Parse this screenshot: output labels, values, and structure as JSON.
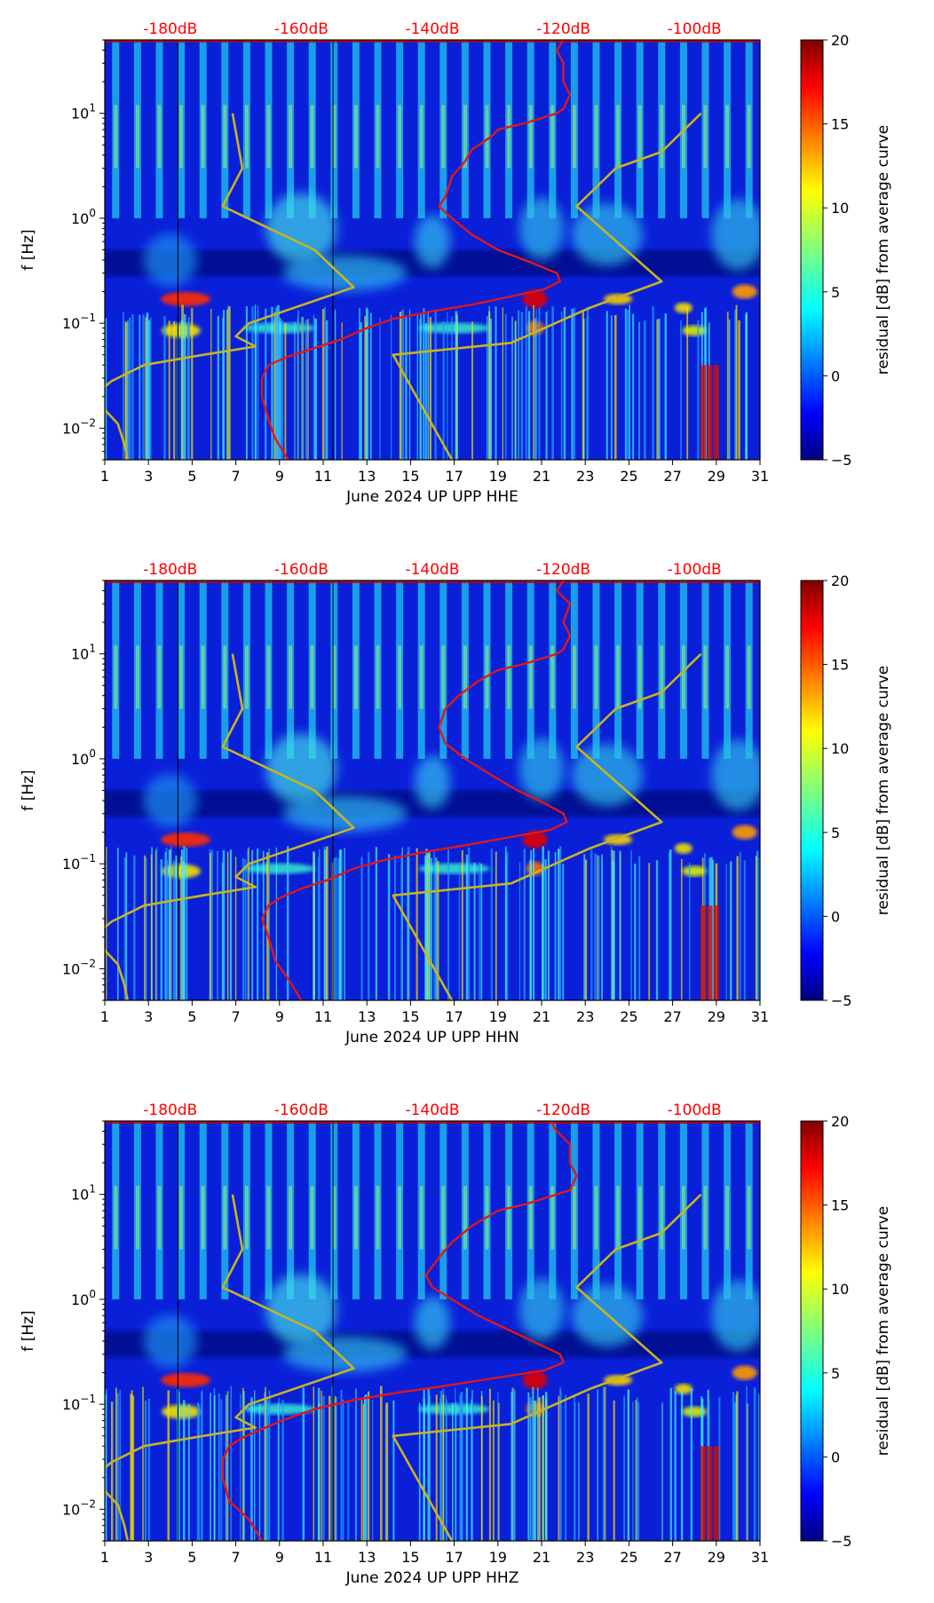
{
  "colors": {
    "psd_curve": "#e0161a",
    "model_curve": "#c8b420",
    "top_db_labels": "#ff0000",
    "background": "#ffffff"
  },
  "chart_data": [
    {
      "type": "heatmap",
      "xlabel": "June 2024 UP UPP  HHE",
      "ylabel": "f [Hz]",
      "x_ticks": [
        "1",
        "3",
        "5",
        "7",
        "9",
        "11",
        "13",
        "15",
        "17",
        "19",
        "21",
        "23",
        "25",
        "27",
        "29",
        "31"
      ],
      "y_ticks": [
        "10^-2",
        "10^-1",
        "10^0",
        "10^1"
      ],
      "xlim": [
        1,
        31
      ],
      "ylim": [
        0.005,
        50
      ],
      "y_scale": "log",
      "top_labels": [
        "-180dB",
        "-160dB",
        "-140dB",
        "-120dB",
        "-100dB"
      ],
      "colorbar": {
        "label": "residual [dB] from average curve",
        "ticks": [
          "-5",
          "0",
          "5",
          "10",
          "15",
          "20"
        ],
        "range": [
          -5,
          20
        ],
        "colormap": "jet"
      },
      "series": [
        {
          "key": "psd",
          "points": [
            [
              -120,
              50
            ],
            [
              -121,
              40
            ],
            [
              -120,
              30
            ],
            [
              -120,
              20
            ],
            [
              -119,
              15
            ],
            [
              -120,
              11
            ],
            [
              -121,
              10
            ],
            [
              -126,
              8
            ],
            [
              -130,
              7
            ],
            [
              -131,
              6
            ],
            [
              -134,
              4.5
            ],
            [
              -135,
              3.5
            ],
            [
              -137,
              2.5
            ],
            [
              -138,
              1.6
            ],
            [
              -139,
              1.3
            ],
            [
              -137,
              1
            ],
            [
              -134,
              0.7
            ],
            [
              -130,
              0.5
            ],
            [
              -125,
              0.38
            ],
            [
              -121,
              0.3
            ],
            [
              -120.5,
              0.25
            ],
            [
              -123,
              0.21
            ],
            [
              -128,
              0.18
            ],
            [
              -134,
              0.15
            ],
            [
              -140,
              0.13
            ],
            [
              -146,
              0.11
            ],
            [
              -150,
              0.09
            ],
            [
              -154,
              0.07
            ],
            [
              -158,
              0.058
            ],
            [
              -162,
              0.048
            ],
            [
              -165,
              0.04
            ],
            [
              -166,
              0.03
            ],
            [
              -166,
              0.02
            ],
            [
              -165,
              0.012
            ],
            [
              -164,
              0.008
            ],
            [
              -162,
              0.005
            ]
          ]
        },
        {
          "key": "model_low",
          "points": [
            [
              -170.5,
              10
            ],
            [
              -169,
              3
            ],
            [
              -172,
              1.3
            ],
            [
              -158,
              0.5
            ],
            [
              -152,
              0.22
            ],
            [
              -168,
              0.1
            ],
            [
              -170,
              0.075
            ],
            [
              -167,
              0.06
            ],
            [
              -175,
              0.05
            ],
            [
              -184,
              0.04
            ],
            [
              -189,
              0.028
            ],
            [
              -191,
              0.022
            ],
            [
              -190,
              0.015
            ],
            [
              -188,
              0.011
            ],
            [
              -187,
              0.007
            ],
            [
              -186.5,
              0.005
            ]
          ]
        },
        {
          "key": "model_high",
          "points": [
            [
              -99,
              10
            ],
            [
              -105,
              4.3
            ],
            [
              -112,
              3
            ],
            [
              -118,
              1.3
            ],
            [
              -105,
              0.25
            ],
            [
              -116,
              0.14
            ],
            [
              -128,
              0.065
            ],
            [
              -146,
              0.05
            ],
            [
              -137,
              0.005
            ]
          ]
        }
      ]
    },
    {
      "type": "heatmap",
      "xlabel": "June 2024 UP UPP  HHN",
      "ylabel": "f [Hz]",
      "x_ticks": [
        "1",
        "3",
        "5",
        "7",
        "9",
        "11",
        "13",
        "15",
        "17",
        "19",
        "21",
        "23",
        "25",
        "27",
        "29",
        "31"
      ],
      "y_ticks": [
        "10^-2",
        "10^-1",
        "10^0",
        "10^1"
      ],
      "xlim": [
        1,
        31
      ],
      "ylim": [
        0.005,
        50
      ],
      "y_scale": "log",
      "top_labels": [
        "-180dB",
        "-160dB",
        "-140dB",
        "-120dB",
        "-100dB"
      ],
      "colorbar": {
        "label": "residual [dB] from average curve",
        "ticks": [
          "-5",
          "0",
          "5",
          "10",
          "15",
          "20"
        ],
        "range": [
          -5,
          20
        ],
        "colormap": "jet"
      },
      "series": [
        {
          "key": "psd",
          "points": [
            [
              -120,
              50
            ],
            [
              -121,
              40
            ],
            [
              -119,
              30
            ],
            [
              -120,
              20
            ],
            [
              -119,
              15
            ],
            [
              -120,
              11
            ],
            [
              -121,
              10
            ],
            [
              -126,
              8
            ],
            [
              -130,
              7
            ],
            [
              -133,
              5.5
            ],
            [
              -136,
              4
            ],
            [
              -138,
              3
            ],
            [
              -139,
              2
            ],
            [
              -138,
              1.4
            ],
            [
              -135,
              1
            ],
            [
              -131,
              0.7
            ],
            [
              -127,
              0.5
            ],
            [
              -123,
              0.38
            ],
            [
              -120,
              0.3
            ],
            [
              -119.5,
              0.25
            ],
            [
              -122,
              0.21
            ],
            [
              -128,
              0.18
            ],
            [
              -135,
              0.15
            ],
            [
              -141,
              0.13
            ],
            [
              -147,
              0.11
            ],
            [
              -152,
              0.09
            ],
            [
              -156,
              0.07
            ],
            [
              -160,
              0.058
            ],
            [
              -163,
              0.048
            ],
            [
              -165,
              0.04
            ],
            [
              -166,
              0.03
            ],
            [
              -165,
              0.02
            ],
            [
              -164,
              0.012
            ],
            [
              -162,
              0.008
            ],
            [
              -160,
              0.005
            ]
          ]
        },
        {
          "key": "model_low",
          "points": [
            [
              -170.5,
              10
            ],
            [
              -169,
              3
            ],
            [
              -172,
              1.3
            ],
            [
              -158,
              0.5
            ],
            [
              -152,
              0.22
            ],
            [
              -168,
              0.1
            ],
            [
              -170,
              0.075
            ],
            [
              -167,
              0.06
            ],
            [
              -175,
              0.05
            ],
            [
              -184,
              0.04
            ],
            [
              -189,
              0.028
            ],
            [
              -191,
              0.022
            ],
            [
              -190,
              0.015
            ],
            [
              -188,
              0.011
            ],
            [
              -187,
              0.007
            ],
            [
              -186.5,
              0.005
            ]
          ]
        },
        {
          "key": "model_high",
          "points": [
            [
              -99,
              10
            ],
            [
              -105,
              4.3
            ],
            [
              -112,
              3
            ],
            [
              -118,
              1.3
            ],
            [
              -105,
              0.25
            ],
            [
              -116,
              0.14
            ],
            [
              -128,
              0.065
            ],
            [
              -146,
              0.05
            ],
            [
              -137,
              0.005
            ]
          ]
        }
      ]
    },
    {
      "type": "heatmap",
      "xlabel": "June 2024 UP UPP  HHZ",
      "ylabel": "f [Hz]",
      "x_ticks": [
        "1",
        "3",
        "5",
        "7",
        "9",
        "11",
        "13",
        "15",
        "17",
        "19",
        "21",
        "23",
        "25",
        "27",
        "29",
        "31"
      ],
      "y_ticks": [
        "10^-2",
        "10^-1",
        "10^0",
        "10^1"
      ],
      "xlim": [
        1,
        31
      ],
      "ylim": [
        0.005,
        50
      ],
      "y_scale": "log",
      "top_labels": [
        "-180dB",
        "-160dB",
        "-140dB",
        "-120dB",
        "-100dB"
      ],
      "colorbar": {
        "label": "residual [dB] from average curve",
        "ticks": [
          "-5",
          "0",
          "5",
          "10",
          "15",
          "20"
        ],
        "range": [
          -5,
          20
        ],
        "colormap": "jet"
      },
      "series": [
        {
          "key": "psd",
          "points": [
            [
              -122,
              50
            ],
            [
              -121,
              40
            ],
            [
              -119,
              30
            ],
            [
              -119,
              20
            ],
            [
              -118,
              15
            ],
            [
              -119,
              11
            ],
            [
              -121,
              10
            ],
            [
              -126,
              8
            ],
            [
              -130,
              7
            ],
            [
              -134,
              5
            ],
            [
              -137,
              3.5
            ],
            [
              -139,
              2.5
            ],
            [
              -141,
              1.7
            ],
            [
              -140,
              1.3
            ],
            [
              -137,
              1
            ],
            [
              -133,
              0.7
            ],
            [
              -128,
              0.5
            ],
            [
              -124,
              0.38
            ],
            [
              -120.5,
              0.3
            ],
            [
              -120,
              0.25
            ],
            [
              -123,
              0.21
            ],
            [
              -130,
              0.18
            ],
            [
              -138,
              0.15
            ],
            [
              -145,
              0.13
            ],
            [
              -152,
              0.11
            ],
            [
              -158,
              0.09
            ],
            [
              -163,
              0.07
            ],
            [
              -166,
              0.058
            ],
            [
              -169,
              0.048
            ],
            [
              -171,
              0.04
            ],
            [
              -172,
              0.03
            ],
            [
              -172,
              0.02
            ],
            [
              -171,
              0.012
            ],
            [
              -168,
              0.008
            ],
            [
              -166,
              0.005
            ]
          ]
        },
        {
          "key": "model_low",
          "points": [
            [
              -170.5,
              10
            ],
            [
              -169,
              3
            ],
            [
              -172,
              1.3
            ],
            [
              -158,
              0.5
            ],
            [
              -152,
              0.22
            ],
            [
              -168,
              0.1
            ],
            [
              -170,
              0.075
            ],
            [
              -167,
              0.06
            ],
            [
              -175,
              0.05
            ],
            [
              -184,
              0.04
            ],
            [
              -189,
              0.028
            ],
            [
              -191,
              0.022
            ],
            [
              -190,
              0.015
            ],
            [
              -188,
              0.011
            ],
            [
              -187,
              0.007
            ],
            [
              -186.5,
              0.005
            ]
          ]
        },
        {
          "key": "model_high",
          "points": [
            [
              -99,
              10
            ],
            [
              -105,
              4.3
            ],
            [
              -112,
              3
            ],
            [
              -118,
              1.3
            ],
            [
              -105,
              0.25
            ],
            [
              -116,
              0.14
            ],
            [
              -128,
              0.065
            ],
            [
              -146,
              0.05
            ],
            [
              -137,
              0.005
            ]
          ]
        }
      ]
    }
  ]
}
